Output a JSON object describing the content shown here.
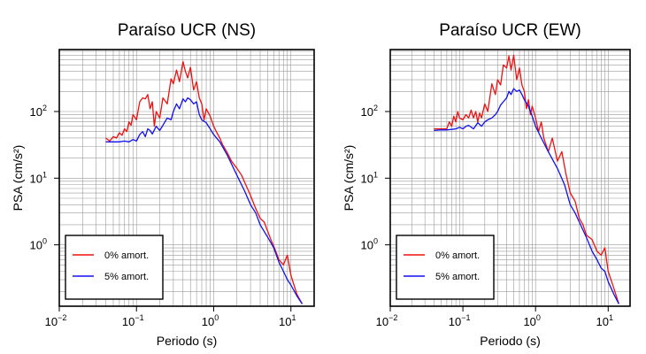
{
  "chart_data": [
    {
      "type": "line",
      "title": "Paraíso UCR (NS)",
      "xlabel": "Periodo (s)",
      "ylabel": "PSA (cm/s²)",
      "x_scale": "log",
      "y_scale": "log",
      "xlim": [
        0.01,
        20
      ],
      "ylim": [
        0.12,
        850
      ],
      "grid": true,
      "legend_position": "bottom-left",
      "x_ticks": [
        {
          "value": 0.01,
          "base": "10",
          "exp": "−2"
        },
        {
          "value": 0.1,
          "base": "10",
          "exp": "−1"
        },
        {
          "value": 1,
          "base": "10",
          "exp": "0"
        },
        {
          "value": 10,
          "base": "10",
          "exp": "1"
        }
      ],
      "y_ticks": [
        {
          "value": 1,
          "base": "10",
          "exp": "0"
        },
        {
          "value": 10,
          "base": "10",
          "exp": "1"
        },
        {
          "value": 100,
          "base": "10",
          "exp": "2"
        }
      ],
      "series": [
        {
          "name": "0% amort.",
          "color": "#ee1111",
          "x": [
            0.04,
            0.045,
            0.05,
            0.055,
            0.06,
            0.065,
            0.07,
            0.075,
            0.08,
            0.085,
            0.09,
            0.1,
            0.11,
            0.12,
            0.13,
            0.14,
            0.15,
            0.16,
            0.17,
            0.18,
            0.2,
            0.22,
            0.25,
            0.28,
            0.3,
            0.33,
            0.36,
            0.4,
            0.43,
            0.46,
            0.5,
            0.55,
            0.6,
            0.65,
            0.7,
            0.75,
            0.8,
            0.9,
            1.0,
            1.1,
            1.2,
            1.3,
            1.5,
            1.7,
            2.0,
            2.3,
            2.6,
            3.0,
            3.5,
            4.0,
            4.5,
            5.0,
            5.5,
            6.0,
            7.0,
            8.0,
            9.0,
            10.0,
            12.0,
            14.0
          ],
          "y": [
            40,
            36,
            42,
            40,
            48,
            44,
            55,
            50,
            70,
            62,
            90,
            75,
            140,
            160,
            155,
            180,
            110,
            140,
            60,
            100,
            80,
            160,
            130,
            310,
            260,
            420,
            280,
            560,
            400,
            320,
            460,
            210,
            280,
            160,
            130,
            75,
            110,
            85,
            60,
            48,
            40,
            32,
            24,
            18,
            14,
            11,
            8,
            5.5,
            3.5,
            2.5,
            2.2,
            1.6,
            1.2,
            0.95,
            0.6,
            0.5,
            0.7,
            0.35,
            0.18,
            0.13
          ]
        },
        {
          "name": "5% amort.",
          "color": "#1111ee",
          "x": [
            0.04,
            0.05,
            0.06,
            0.07,
            0.08,
            0.09,
            0.1,
            0.11,
            0.12,
            0.13,
            0.14,
            0.15,
            0.16,
            0.18,
            0.2,
            0.22,
            0.25,
            0.28,
            0.3,
            0.33,
            0.36,
            0.4,
            0.43,
            0.46,
            0.5,
            0.55,
            0.6,
            0.65,
            0.7,
            0.8,
            0.9,
            1.0,
            1.2,
            1.5,
            2.0,
            2.5,
            3.0,
            3.5,
            4.0,
            5.0,
            6.0,
            7.0,
            8.0,
            9.0,
            10.0,
            12.0,
            14.0
          ],
          "y": [
            35,
            35,
            35,
            36,
            35,
            38,
            36,
            45,
            50,
            42,
            55,
            52,
            46,
            60,
            52,
            62,
            80,
            75,
            100,
            130,
            110,
            155,
            140,
            160,
            150,
            130,
            140,
            90,
            75,
            68,
            55,
            45,
            35,
            22,
            11,
            6.5,
            4,
            3,
            2,
            1.3,
            0.9,
            0.55,
            0.4,
            0.3,
            0.25,
            0.17,
            0.13
          ]
        }
      ]
    },
    {
      "type": "line",
      "title": "Paraíso UCR (EW)",
      "xlabel": "Periodo (s)",
      "ylabel": "PSA (cm/s²)",
      "x_scale": "log",
      "y_scale": "log",
      "xlim": [
        0.01,
        20
      ],
      "ylim": [
        0.12,
        850
      ],
      "grid": true,
      "legend_position": "bottom-left",
      "x_ticks": [
        {
          "value": 0.01,
          "base": "10",
          "exp": "−2"
        },
        {
          "value": 0.1,
          "base": "10",
          "exp": "−1"
        },
        {
          "value": 1,
          "base": "10",
          "exp": "0"
        },
        {
          "value": 10,
          "base": "10",
          "exp": "1"
        }
      ],
      "y_ticks": [
        {
          "value": 1,
          "base": "10",
          "exp": "0"
        },
        {
          "value": 10,
          "base": "10",
          "exp": "1"
        },
        {
          "value": 100,
          "base": "10",
          "exp": "2"
        }
      ],
      "series": [
        {
          "name": "0% amort.",
          "color": "#ee1111",
          "x": [
            0.04,
            0.05,
            0.06,
            0.065,
            0.07,
            0.075,
            0.08,
            0.085,
            0.09,
            0.1,
            0.11,
            0.12,
            0.13,
            0.14,
            0.15,
            0.16,
            0.17,
            0.18,
            0.2,
            0.22,
            0.25,
            0.28,
            0.3,
            0.33,
            0.36,
            0.4,
            0.43,
            0.46,
            0.5,
            0.55,
            0.6,
            0.65,
            0.7,
            0.75,
            0.8,
            0.85,
            0.9,
            1.0,
            1.1,
            1.2,
            1.3,
            1.5,
            1.7,
            2.0,
            2.3,
            2.6,
            3.0,
            3.5,
            4.0,
            4.5,
            5.0,
            6.0,
            7.0,
            8.0,
            9.0,
            10.0,
            12.0,
            14.0
          ],
          "y": [
            55,
            55,
            55,
            70,
            60,
            85,
            70,
            100,
            80,
            75,
            90,
            80,
            105,
            80,
            100,
            70,
            95,
            80,
            130,
            100,
            260,
            180,
            300,
            250,
            500,
            450,
            680,
            420,
            700,
            300,
            450,
            250,
            200,
            110,
            150,
            90,
            120,
            80,
            50,
            70,
            40,
            25,
            40,
            18,
            25,
            12,
            6,
            4.5,
            2.5,
            2.0,
            1.4,
            1.2,
            0.8,
            0.7,
            0.9,
            0.4,
            0.22,
            0.13
          ]
        },
        {
          "name": "5% amort.",
          "color": "#1111ee",
          "x": [
            0.04,
            0.05,
            0.06,
            0.07,
            0.08,
            0.09,
            0.1,
            0.11,
            0.12,
            0.14,
            0.16,
            0.18,
            0.2,
            0.22,
            0.25,
            0.28,
            0.3,
            0.33,
            0.36,
            0.4,
            0.43,
            0.46,
            0.5,
            0.55,
            0.6,
            0.65,
            0.7,
            0.8,
            0.9,
            1.0,
            1.2,
            1.5,
            2.0,
            2.5,
            3.0,
            3.5,
            4.0,
            5.0,
            6.0,
            7.0,
            8.0,
            9.0,
            10.0,
            12.0,
            14.0
          ],
          "y": [
            52,
            53,
            53,
            54,
            55,
            58,
            55,
            60,
            62,
            55,
            68,
            60,
            70,
            75,
            80,
            90,
            100,
            125,
            140,
            160,
            200,
            180,
            220,
            200,
            210,
            180,
            150,
            120,
            85,
            60,
            40,
            25,
            14,
            8,
            4,
            3,
            2.2,
            1.3,
            0.8,
            0.6,
            0.45,
            0.4,
            0.28,
            0.18,
            0.13
          ]
        }
      ]
    }
  ]
}
